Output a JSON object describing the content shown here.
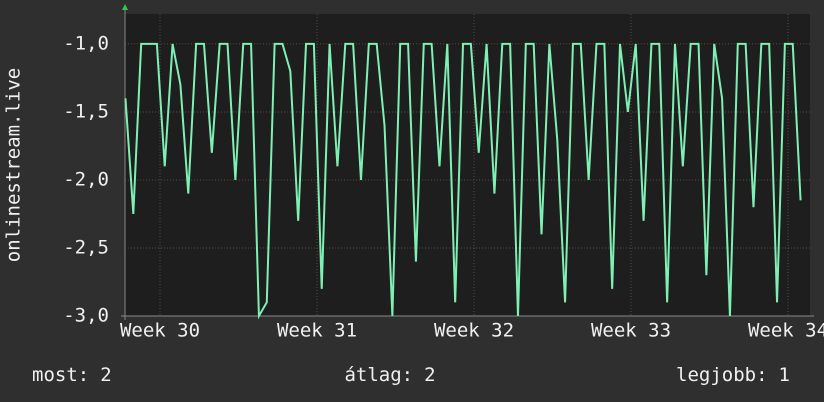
{
  "chart_data": {
    "type": "line",
    "y_label": "onlinestream.live",
    "x": [
      29.78,
      29.83,
      29.88,
      29.93,
      29.98,
      30.03,
      30.08,
      30.13,
      30.18,
      30.23,
      30.28,
      30.33,
      30.38,
      30.43,
      30.48,
      30.53,
      30.58,
      30.63,
      30.68,
      30.73,
      30.78,
      30.83,
      30.88,
      30.93,
      30.98,
      31.03,
      31.08,
      31.13,
      31.18,
      31.23,
      31.28,
      31.33,
      31.38,
      31.43,
      31.48,
      31.53,
      31.58,
      31.63,
      31.68,
      31.73,
      31.78,
      31.83,
      31.88,
      31.93,
      31.98,
      32.03,
      32.08,
      32.13,
      32.18,
      32.23,
      32.28,
      32.33,
      32.38,
      32.43,
      32.48,
      32.53,
      32.58,
      32.63,
      32.68,
      32.73,
      32.78,
      32.83,
      32.88,
      32.93,
      32.98,
      33.03,
      33.08,
      33.13,
      33.18,
      33.23,
      33.28,
      33.33,
      33.38,
      33.43,
      33.48,
      33.53,
      33.58,
      33.63,
      33.68,
      33.73,
      33.78,
      33.83,
      33.88,
      33.93,
      33.98,
      34.03,
      34.08
    ],
    "series": [
      {
        "color": "#7ff0b4",
        "values": [
          -1.4,
          -2.25,
          -1,
          -1,
          -1,
          -1.9,
          -1,
          -1.3,
          -2.1,
          -1,
          -1,
          -1.8,
          -1,
          -1,
          -2,
          -1,
          -1,
          -3,
          -2.9,
          -1,
          -1,
          -1.2,
          -2.3,
          -1,
          -1,
          -2.8,
          -1,
          -1.9,
          -1,
          -1,
          -2,
          -1,
          -1,
          -1.6,
          -3,
          -1,
          -1,
          -2.6,
          -1,
          -1,
          -1.9,
          -1,
          -2.9,
          -1,
          -1,
          -1.8,
          -1,
          -2.1,
          -1,
          -1,
          -3,
          -1,
          -1,
          -2.4,
          -1,
          -1.7,
          -2.9,
          -1,
          -1,
          -2,
          -1,
          -1,
          -2.8,
          -1,
          -1.5,
          -1,
          -2.3,
          -1,
          -1,
          -2.9,
          -1,
          -1.9,
          -1,
          -1,
          -2.7,
          -1,
          -1.4,
          -3,
          -1,
          -1,
          -2.2,
          -1,
          -1,
          -2.9,
          -1,
          -1,
          -2.15
        ]
      }
    ],
    "xlim": [
      29.777,
      34.14
    ],
    "xticks": [
      {
        "value": 30,
        "label": "Week 30"
      },
      {
        "value": 31,
        "label": "Week 31"
      },
      {
        "value": 32,
        "label": "Week 32"
      },
      {
        "value": 33,
        "label": "Week 33"
      },
      {
        "value": 34,
        "label": "Week 34"
      }
    ],
    "ylim": [
      -3,
      -0.78
    ],
    "yticks": [
      {
        "value": -3,
        "label": "-3,0"
      },
      {
        "value": -2.5,
        "label": "-2,5"
      },
      {
        "value": -2,
        "label": "-2,0"
      },
      {
        "value": -1.5,
        "label": "-1,5"
      },
      {
        "value": -1,
        "label": "-1,0"
      }
    ],
    "grid": true,
    "stats": [
      {
        "label": "most:",
        "value": 2
      },
      {
        "label": "átlag:",
        "value": 2
      },
      {
        "label": "legjobb:",
        "value": 1
      }
    ]
  }
}
